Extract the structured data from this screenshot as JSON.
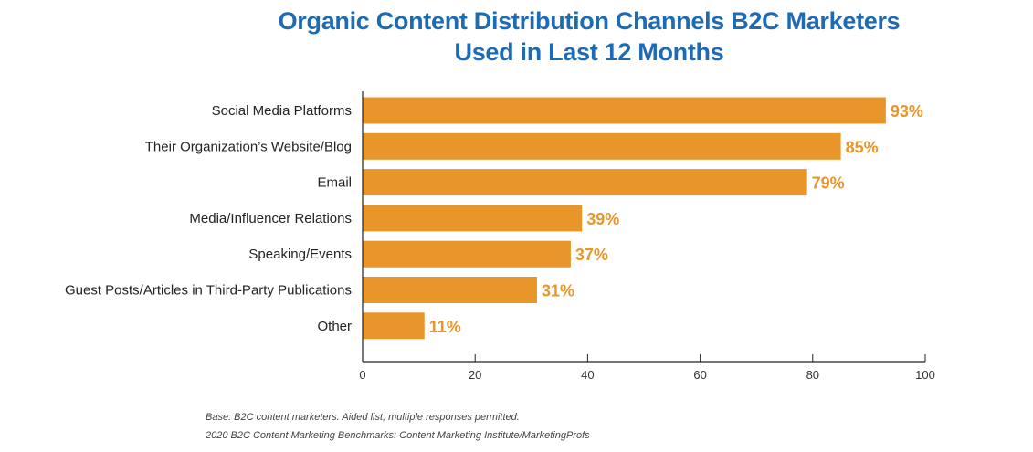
{
  "chart_data": {
    "type": "bar",
    "orientation": "horizontal",
    "title_lines": [
      "Organic Content Distribution Channels B2C Marketers",
      "Used in Last 12 Months"
    ],
    "categories": [
      "Social Media Platforms",
      "Their Organization’s Website/Blog",
      "Email",
      "Media/Influencer Relations",
      "Speaking/Events",
      "Guest Posts/Articles in Third-Party Publications",
      "Other"
    ],
    "values": [
      93,
      85,
      79,
      39,
      37,
      31,
      11
    ],
    "data_labels": [
      "93%",
      "85%",
      "79%",
      "39%",
      "37%",
      "31%",
      "11%"
    ],
    "xlim": [
      0,
      100
    ],
    "xticks": [
      0,
      20,
      40,
      60,
      80,
      100
    ],
    "xlabel": "",
    "ylabel": "",
    "grid": false,
    "bar_color": "#E8962A",
    "label_color": "#E8962A",
    "title_color": "#1f6bb3"
  },
  "footnotes": {
    "base": "Base: B2C content marketers. Aided list; multiple responses permitted.",
    "source": "2020 B2C Content Marketing Benchmarks: Content Marketing Institute/MarketingProfs"
  }
}
